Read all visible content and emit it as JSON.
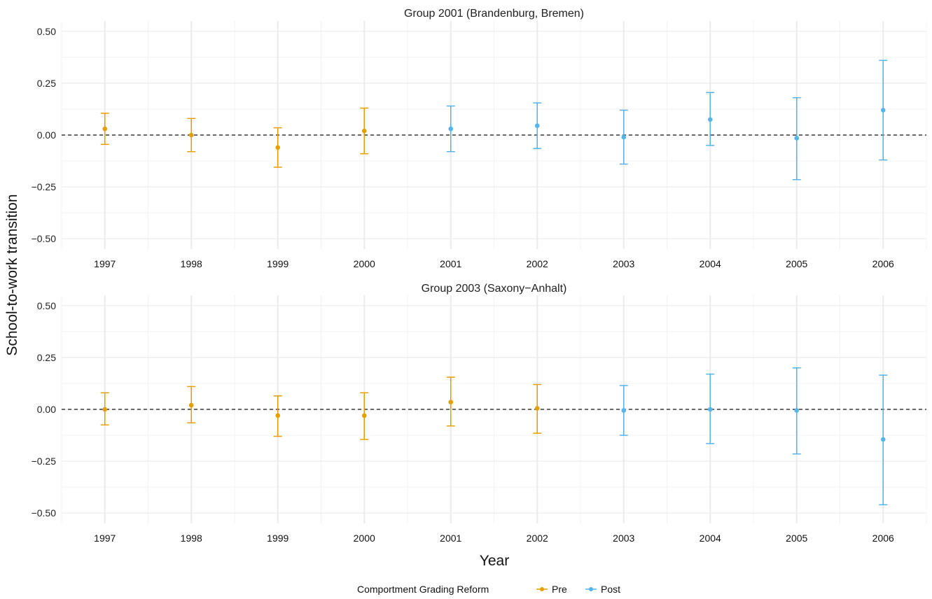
{
  "chart_data": {
    "type": "scatter",
    "subtype": "point-errorbar",
    "xlabel": "Year",
    "ylabel": "School-to-work transition",
    "ylim": [
      -0.55,
      0.55
    ],
    "yticks": [
      -0.5,
      -0.25,
      0.0,
      0.25,
      0.5
    ],
    "ytick_labels": [
      "−0.50",
      "−0.25",
      "0.00",
      "0.25",
      "0.50"
    ],
    "x": [
      "1997",
      "1998",
      "1999",
      "2000",
      "2001",
      "2002",
      "2003",
      "2004",
      "2005",
      "2006"
    ],
    "reference_line": {
      "y": 0,
      "style": "dashed"
    },
    "grid": true,
    "legend": {
      "title": "Comportment Grading Reform",
      "position": "bottom",
      "entries": [
        {
          "label": "Pre",
          "color": "#E69F00"
        },
        {
          "label": "Post",
          "color": "#56B4E9"
        }
      ]
    },
    "panels": [
      {
        "title": "Group 2001 (Brandenburg, Bremen)",
        "points": [
          {
            "x": "1997",
            "y": 0.03,
            "lo": -0.045,
            "hi": 0.105,
            "group": "Pre"
          },
          {
            "x": "1998",
            "y": 0.0,
            "lo": -0.08,
            "hi": 0.08,
            "group": "Pre"
          },
          {
            "x": "1999",
            "y": -0.06,
            "lo": -0.155,
            "hi": 0.035,
            "group": "Pre"
          },
          {
            "x": "2000",
            "y": 0.02,
            "lo": -0.09,
            "hi": 0.13,
            "group": "Pre"
          },
          {
            "x": "2001",
            "y": 0.03,
            "lo": -0.08,
            "hi": 0.14,
            "group": "Post"
          },
          {
            "x": "2002",
            "y": 0.045,
            "lo": -0.065,
            "hi": 0.155,
            "group": "Post"
          },
          {
            "x": "2003",
            "y": -0.01,
            "lo": -0.14,
            "hi": 0.12,
            "group": "Post"
          },
          {
            "x": "2004",
            "y": 0.075,
            "lo": -0.05,
            "hi": 0.205,
            "group": "Post"
          },
          {
            "x": "2005",
            "y": -0.015,
            "lo": -0.215,
            "hi": 0.18,
            "group": "Post"
          },
          {
            "x": "2006",
            "y": 0.12,
            "lo": -0.12,
            "hi": 0.36,
            "group": "Post"
          }
        ]
      },
      {
        "title": "Group 2003 (Saxony−Anhalt)",
        "points": [
          {
            "x": "1997",
            "y": 0.0,
            "lo": -0.075,
            "hi": 0.08,
            "group": "Pre"
          },
          {
            "x": "1998",
            "y": 0.02,
            "lo": -0.065,
            "hi": 0.11,
            "group": "Pre"
          },
          {
            "x": "1999",
            "y": -0.03,
            "lo": -0.13,
            "hi": 0.065,
            "group": "Pre"
          },
          {
            "x": "2000",
            "y": -0.03,
            "lo": -0.145,
            "hi": 0.08,
            "group": "Pre"
          },
          {
            "x": "2001",
            "y": 0.035,
            "lo": -0.08,
            "hi": 0.155,
            "group": "Pre"
          },
          {
            "x": "2002",
            "y": 0.005,
            "lo": -0.115,
            "hi": 0.12,
            "group": "Pre"
          },
          {
            "x": "2003",
            "y": -0.005,
            "lo": -0.125,
            "hi": 0.115,
            "group": "Post"
          },
          {
            "x": "2004",
            "y": 0.0,
            "lo": -0.165,
            "hi": 0.17,
            "group": "Post"
          },
          {
            "x": "2005",
            "y": -0.005,
            "lo": -0.215,
            "hi": 0.2,
            "group": "Post"
          },
          {
            "x": "2006",
            "y": -0.145,
            "lo": -0.46,
            "hi": 0.165,
            "group": "Post"
          }
        ]
      }
    ]
  }
}
